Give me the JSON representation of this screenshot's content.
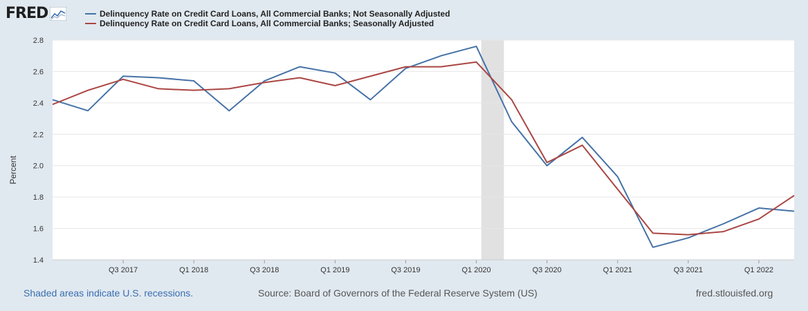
{
  "logo": {
    "text": "FRED",
    "icon": "fred-chart-icon"
  },
  "legend": [
    {
      "label": "Delinquency Rate on Credit Card Loans, All Commercial Banks; Not Seasonally Adjusted",
      "color": "#4572a7"
    },
    {
      "label": "Delinquency Rate on Credit Card Loans, All Commercial Banks; Seasonally Adjusted",
      "color": "#aa4643"
    }
  ],
  "footer": {
    "recession_note": "Shaded areas indicate U.S. recessions.",
    "source": "Source: Board of Governors of the Federal Reserve System (US)",
    "site": "fred.stlouisfed.org"
  },
  "chart_data": {
    "type": "line",
    "title": "",
    "xlabel": "",
    "ylabel": "Percent",
    "ylim": [
      1.4,
      2.8
    ],
    "yticks": [
      "1.4",
      "1.6",
      "1.8",
      "2.0",
      "2.2",
      "2.4",
      "2.6",
      "2.8"
    ],
    "grid": true,
    "x": [
      "Q1 2017",
      "Q2 2017",
      "Q3 2017",
      "Q4 2017",
      "Q1 2018",
      "Q2 2018",
      "Q3 2018",
      "Q4 2018",
      "Q1 2019",
      "Q2 2019",
      "Q3 2019",
      "Q4 2019",
      "Q1 2020",
      "Q2 2020",
      "Q3 2020",
      "Q4 2020",
      "Q1 2021",
      "Q2 2021",
      "Q3 2021",
      "Q4 2021",
      "Q1 2022",
      "Q2 2022"
    ],
    "xtick_labels": [
      "Q3 2017",
      "Q1 2018",
      "Q3 2018",
      "Q1 2019",
      "Q3 2019",
      "Q1 2020",
      "Q3 2020",
      "Q1 2021",
      "Q3 2021",
      "Q1 2022"
    ],
    "recession": {
      "start": "Q1 2020",
      "end": "Q2 2020"
    },
    "series": [
      {
        "name": "Delinquency Rate on Credit Card Loans, All Commercial Banks; Not Seasonally Adjusted",
        "color": "#4572a7",
        "values": [
          2.42,
          2.35,
          2.57,
          2.56,
          2.54,
          2.35,
          2.54,
          2.63,
          2.59,
          2.42,
          2.62,
          2.7,
          2.76,
          2.28,
          2.0,
          2.18,
          1.93,
          1.48,
          1.54,
          1.63,
          1.73,
          1.71
        ]
      },
      {
        "name": "Delinquency Rate on Credit Card Loans, All Commercial Banks; Seasonally Adjusted",
        "color": "#aa4643",
        "values": [
          2.39,
          2.48,
          2.55,
          2.49,
          2.48,
          2.49,
          2.53,
          2.56,
          2.51,
          2.57,
          2.63,
          2.63,
          2.66,
          2.42,
          2.02,
          2.13,
          1.85,
          1.57,
          1.56,
          1.58,
          1.66,
          1.81
        ]
      }
    ]
  }
}
